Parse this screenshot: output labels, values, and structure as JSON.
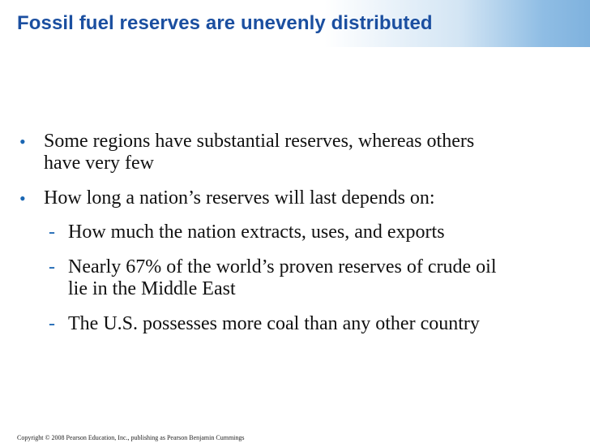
{
  "slide": {
    "title": "Fossil fuel reserves are unevenly distributed",
    "bullets": [
      {
        "marker": "•",
        "text": "Some regions have substantial reserves, whereas others have very few",
        "line1": "Some regions have substantial reserves, whereas others",
        "line2": "have very few"
      },
      {
        "marker": "•",
        "text": "How long a nation’s reserves will last depends on:",
        "sub": [
          {
            "marker": "-",
            "line1": "How much the nation extracts, uses, and exports"
          },
          {
            "marker": "-",
            "line1": "Nearly 67% of the world’s proven reserves of crude oil",
            "line2": "lie in the Middle East"
          },
          {
            "marker": "-",
            "line1": "The U.S. possesses more coal than any other country"
          }
        ]
      }
    ],
    "footer": "Copyright © 2008 Pearson Education, Inc., publishing as Pearson Benjamin Cummings"
  },
  "colors": {
    "title": "#1b4fa0",
    "bullet": "#1a66b3",
    "band_right": "#7fb2de"
  }
}
